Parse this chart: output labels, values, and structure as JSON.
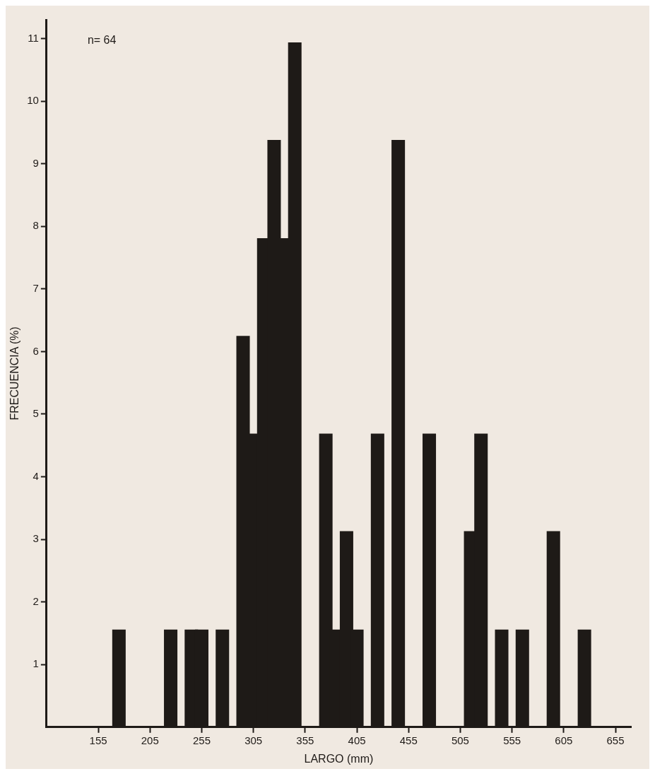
{
  "chart_data": {
    "type": "bar",
    "xlabel": "LARGO (mm)",
    "ylabel": "FRECUENCIA (%)",
    "annotations": [
      "n= 64"
    ],
    "x": [
      175,
      225,
      245,
      255,
      275,
      295,
      305,
      315,
      325,
      335,
      345,
      375,
      385,
      395,
      405,
      425,
      445,
      475,
      515,
      525,
      545,
      565,
      595,
      625
    ],
    "values": [
      1.56,
      1.56,
      1.56,
      1.56,
      1.56,
      6.25,
      4.69,
      7.81,
      9.38,
      7.81,
      10.94,
      4.69,
      1.56,
      3.13,
      1.56,
      4.69,
      9.38,
      4.69,
      3.13,
      4.69,
      1.56,
      1.56,
      3.13,
      1.56
    ],
    "color": "#1e1a17",
    "xlim": [
      105,
      670
    ],
    "xticks": [
      155,
      205,
      255,
      305,
      355,
      405,
      455,
      505,
      555,
      605,
      655
    ],
    "ylim": [
      0,
      11.3
    ],
    "yticks": [
      1,
      2,
      3,
      4,
      5,
      6,
      7,
      8,
      9,
      10,
      11
    ],
    "grid": false,
    "legend": false
  }
}
